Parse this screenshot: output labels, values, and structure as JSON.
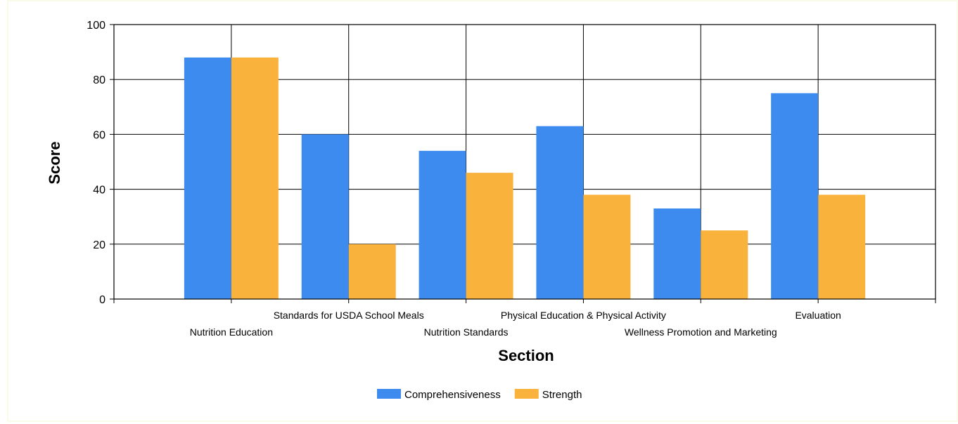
{
  "chart_data": {
    "type": "bar",
    "title": "",
    "xlabel": "Section",
    "ylabel": "Score",
    "ylim": [
      0,
      100
    ],
    "yticks": [
      0,
      20,
      40,
      60,
      80,
      100
    ],
    "grid": true,
    "legend_position": "bottom",
    "categories": [
      "Nutrition Education",
      "Standards for USDA School Meals",
      "Nutrition Standards",
      "Physical Education & Physical Activity",
      "Wellness Promotion and Marketing",
      "Evaluation"
    ],
    "series": [
      {
        "name": "Comprehensiveness",
        "color": "#3d8bef",
        "values": [
          88,
          60,
          54,
          63,
          33,
          75
        ]
      },
      {
        "name": "Strength",
        "color": "#f9b23c",
        "values": [
          88,
          20,
          46,
          38,
          25,
          38
        ]
      }
    ]
  }
}
